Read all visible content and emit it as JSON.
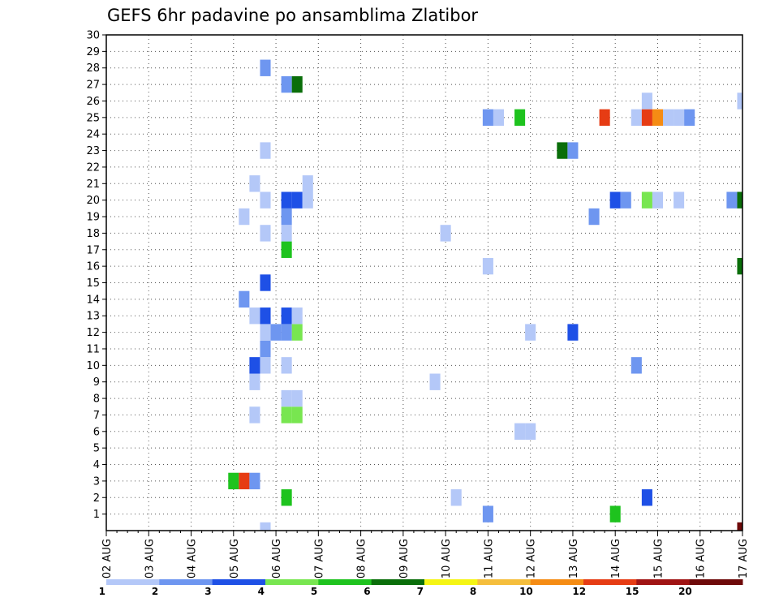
{
  "chart_data": {
    "type": "heatmap",
    "title": "GEFS 6hr padavine po ansamblima Zlatibor",
    "xlabel": "",
    "ylabel": "",
    "x_tick_labels": [
      "02 AUG",
      "03 AUG",
      "04 AUG",
      "05 AUG",
      "06 AUG",
      "07 AUG",
      "08 AUG",
      "09 AUG",
      "10 AUG",
      "11 AUG",
      "12 AUG",
      "13 AUG",
      "14 AUG",
      "15 AUG",
      "16 AUG",
      "17 AUG"
    ],
    "y_tick_labels": [
      "1",
      "2",
      "3",
      "4",
      "5",
      "6",
      "7",
      "8",
      "9",
      "10",
      "11",
      "12",
      "13",
      "14",
      "15",
      "16",
      "17",
      "18",
      "19",
      "20",
      "21",
      "22",
      "23",
      "24",
      "25",
      "26",
      "27",
      "28",
      "29",
      "30"
    ],
    "x_unit": "6-hour step from 02 AUG 00Z",
    "x_range_steps": [
      0,
      60
    ],
    "y_range": [
      0,
      30
    ],
    "grid": true,
    "colorbar": {
      "position": "bottom",
      "labels": [
        "1",
        "2",
        "3",
        "4",
        "5",
        "6",
        "7",
        "8",
        "10",
        "12",
        "15",
        "20"
      ],
      "colors": [
        "#b4c8f8",
        "#6e96f0",
        "#1e50e6",
        "#78e650",
        "#1ec31e",
        "#0a6e0a",
        "#f5f514",
        "#f5be3c",
        "#f58c14",
        "#e63c14",
        "#a01414",
        "#6e0a0a"
      ]
    },
    "cells": [
      {
        "step": 15,
        "y": 0,
        "color": "#b4c8f8"
      },
      {
        "step": 60,
        "y": 0,
        "color": "#6e0a0a"
      },
      {
        "step": 36,
        "y": 1,
        "color": "#6e96f0"
      },
      {
        "step": 48,
        "y": 1,
        "color": "#1ec31e"
      },
      {
        "step": 17,
        "y": 2,
        "color": "#1ec31e"
      },
      {
        "step": 33,
        "y": 2,
        "color": "#b4c8f8"
      },
      {
        "step": 51,
        "y": 2,
        "color": "#1e50e6"
      },
      {
        "step": 12,
        "y": 3,
        "color": "#1ec31e"
      },
      {
        "step": 13,
        "y": 3,
        "color": "#e63c14"
      },
      {
        "step": 14,
        "y": 3,
        "color": "#6e96f0"
      },
      {
        "step": 39,
        "y": 6,
        "color": "#b4c8f8"
      },
      {
        "step": 40,
        "y": 6,
        "color": "#b4c8f8"
      },
      {
        "step": 14,
        "y": 7,
        "color": "#b4c8f8"
      },
      {
        "step": 17,
        "y": 7,
        "color": "#78e650"
      },
      {
        "step": 18,
        "y": 7,
        "color": "#78e650"
      },
      {
        "step": 17,
        "y": 8,
        "color": "#b4c8f8"
      },
      {
        "step": 18,
        "y": 8,
        "color": "#b4c8f8"
      },
      {
        "step": 14,
        "y": 9,
        "color": "#b4c8f8"
      },
      {
        "step": 31,
        "y": 9,
        "color": "#b4c8f8"
      },
      {
        "step": 14,
        "y": 10,
        "color": "#1e50e6"
      },
      {
        "step": 15,
        "y": 10,
        "color": "#b4c8f8"
      },
      {
        "step": 17,
        "y": 10,
        "color": "#b4c8f8"
      },
      {
        "step": 50,
        "y": 10,
        "color": "#6e96f0"
      },
      {
        "step": 15,
        "y": 11,
        "color": "#6e96f0"
      },
      {
        "step": 15,
        "y": 12,
        "color": "#b4c8f8"
      },
      {
        "step": 16,
        "y": 12,
        "color": "#6e96f0"
      },
      {
        "step": 17,
        "y": 12,
        "color": "#6e96f0"
      },
      {
        "step": 18,
        "y": 12,
        "color": "#78e650"
      },
      {
        "step": 40,
        "y": 12,
        "color": "#b4c8f8"
      },
      {
        "step": 44,
        "y": 12,
        "color": "#1e50e6"
      },
      {
        "step": 14,
        "y": 13,
        "color": "#b4c8f8"
      },
      {
        "step": 15,
        "y": 13,
        "color": "#1e50e6"
      },
      {
        "step": 17,
        "y": 13,
        "color": "#1e50e6"
      },
      {
        "step": 18,
        "y": 13,
        "color": "#b4c8f8"
      },
      {
        "step": 13,
        "y": 14,
        "color": "#6e96f0"
      },
      {
        "step": 15,
        "y": 15,
        "color": "#1e50e6"
      },
      {
        "step": 36,
        "y": 16,
        "color": "#b4c8f8"
      },
      {
        "step": 60,
        "y": 16,
        "color": "#0a6e0a"
      },
      {
        "step": 17,
        "y": 17,
        "color": "#1ec31e"
      },
      {
        "step": 15,
        "y": 18,
        "color": "#b4c8f8"
      },
      {
        "step": 17,
        "y": 18,
        "color": "#b4c8f8"
      },
      {
        "step": 32,
        "y": 18,
        "color": "#b4c8f8"
      },
      {
        "step": 13,
        "y": 19,
        "color": "#b4c8f8"
      },
      {
        "step": 17,
        "y": 19,
        "color": "#6e96f0"
      },
      {
        "step": 46,
        "y": 19,
        "color": "#6e96f0"
      },
      {
        "step": 15,
        "y": 20,
        "color": "#b4c8f8"
      },
      {
        "step": 17,
        "y": 20,
        "color": "#1e50e6"
      },
      {
        "step": 18,
        "y": 20,
        "color": "#1e50e6"
      },
      {
        "step": 19,
        "y": 20,
        "color": "#b4c8f8"
      },
      {
        "step": 48,
        "y": 20,
        "color": "#1e50e6"
      },
      {
        "step": 49,
        "y": 20,
        "color": "#6e96f0"
      },
      {
        "step": 51,
        "y": 20,
        "color": "#78e650"
      },
      {
        "step": 52,
        "y": 20,
        "color": "#b4c8f8"
      },
      {
        "step": 54,
        "y": 20,
        "color": "#b4c8f8"
      },
      {
        "step": 59,
        "y": 20,
        "color": "#6e96f0"
      },
      {
        "step": 60,
        "y": 20,
        "color": "#0a6e0a"
      },
      {
        "step": 14,
        "y": 21,
        "color": "#b4c8f8"
      },
      {
        "step": 19,
        "y": 21,
        "color": "#b4c8f8"
      },
      {
        "step": 15,
        "y": 23,
        "color": "#b4c8f8"
      },
      {
        "step": 43,
        "y": 23,
        "color": "#0a6e0a"
      },
      {
        "step": 44,
        "y": 23,
        "color": "#6e96f0"
      },
      {
        "step": 36,
        "y": 25,
        "color": "#6e96f0"
      },
      {
        "step": 37,
        "y": 25,
        "color": "#b4c8f8"
      },
      {
        "step": 39,
        "y": 25,
        "color": "#1ec31e"
      },
      {
        "step": 47,
        "y": 25,
        "color": "#e63c14"
      },
      {
        "step": 50,
        "y": 25,
        "color": "#b4c8f8"
      },
      {
        "step": 51,
        "y": 25,
        "color": "#e63c14"
      },
      {
        "step": 52,
        "y": 25,
        "color": "#f58c14"
      },
      {
        "step": 53,
        "y": 25,
        "color": "#b4c8f8"
      },
      {
        "step": 54,
        "y": 25,
        "color": "#b4c8f8"
      },
      {
        "step": 55,
        "y": 25,
        "color": "#6e96f0"
      },
      {
        "step": 51,
        "y": 26,
        "color": "#b4c8f8"
      },
      {
        "step": 60,
        "y": 26,
        "color": "#b4c8f8"
      },
      {
        "step": 17,
        "y": 27,
        "color": "#6e96f0"
      },
      {
        "step": 18,
        "y": 27,
        "color": "#0a6e0a"
      },
      {
        "step": 15,
        "y": 28,
        "color": "#6e96f0"
      }
    ]
  }
}
